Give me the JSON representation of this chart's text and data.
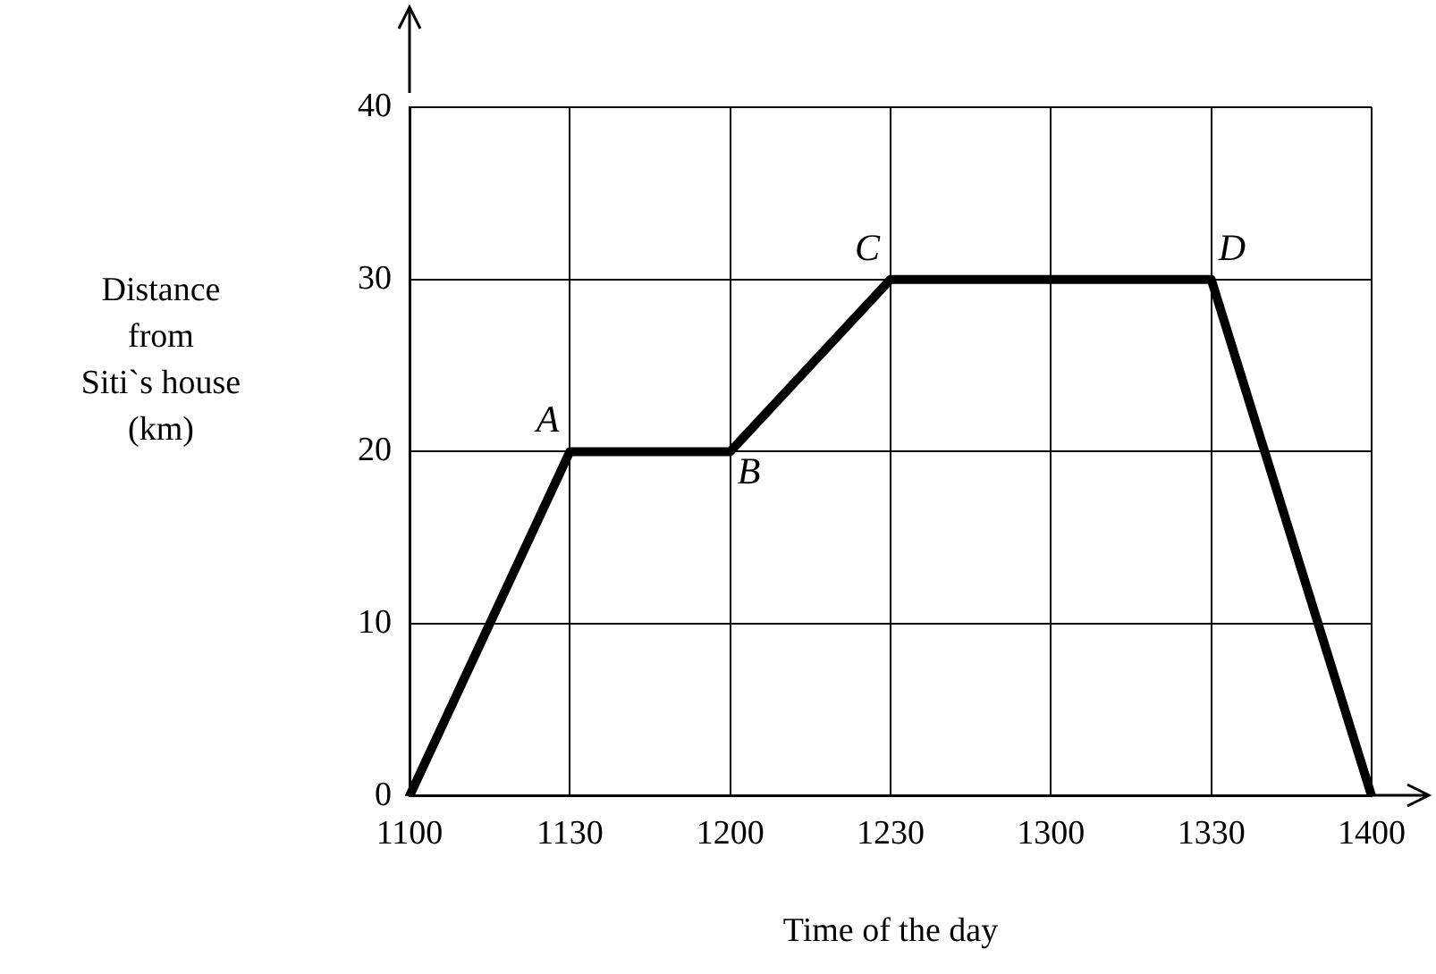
{
  "chart_data": {
    "type": "line",
    "xlabel": "Time of the day",
    "ylabel": "Distance\nfrom\nSiti`s house\n(km)",
    "categories": [
      "1100",
      "1130",
      "1200",
      "1230",
      "1300",
      "1330",
      "1400"
    ],
    "values": [
      0,
      20,
      20,
      30,
      30,
      30,
      0
    ],
    "color": "#000000",
    "ylim": [
      0,
      40
    ],
    "yticks": [
      0,
      10,
      20,
      30,
      40
    ],
    "grid": true,
    "legend": false,
    "marker": "none",
    "line_style": "solid",
    "annotations": [
      {
        "text": "A",
        "x": "1130",
        "y": 20
      },
      {
        "text": "B",
        "x": "1200",
        "y": 20
      },
      {
        "text": "C",
        "x": "1230",
        "y": 30
      },
      {
        "text": "D",
        "x": "1330",
        "y": 30
      }
    ]
  }
}
